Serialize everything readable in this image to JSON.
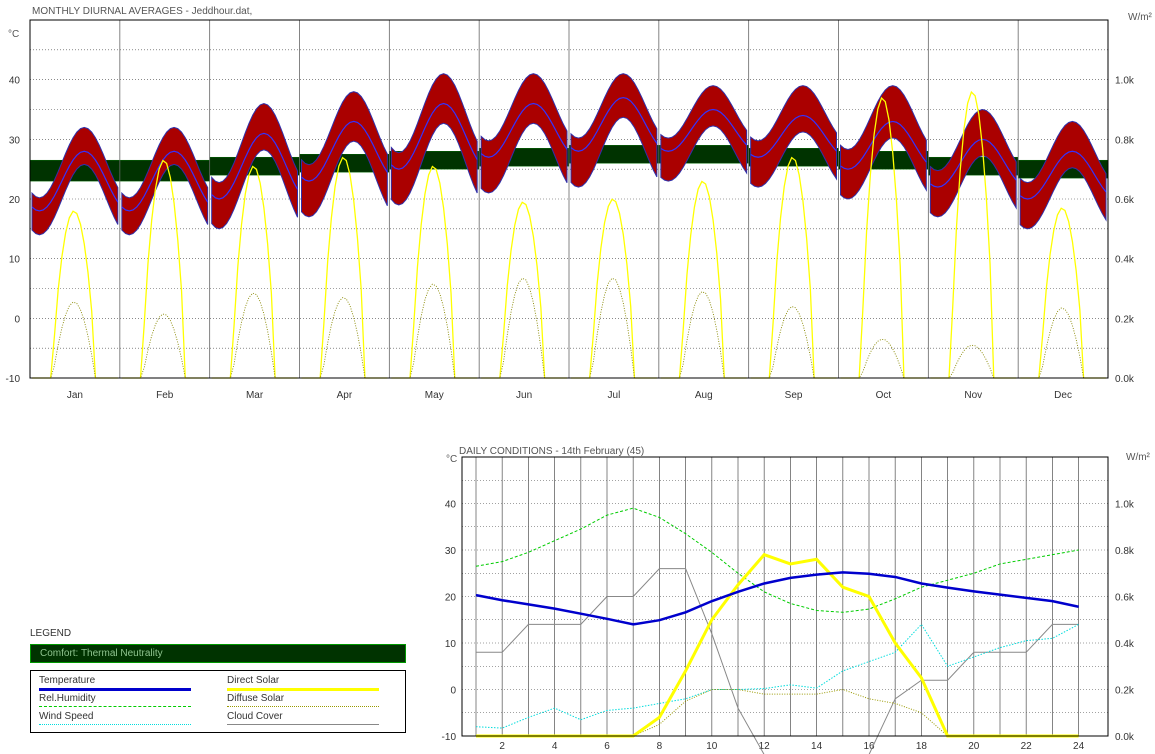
{
  "chart_data": [
    {
      "type": "line",
      "title": "MONTHLY DIURNAL AVERAGES - Jeddhour.dat,",
      "ylabel_left": "°C",
      "ylabel_right": "W/m²",
      "ylim": [
        -10,
        50
      ],
      "ylim_right": [
        0,
        1200
      ],
      "yticks_left": [
        "-10",
        "0",
        "10",
        "20",
        "30",
        "40"
      ],
      "yticks_right": [
        "0.0k",
        "0.2k",
        "0.4k",
        "0.6k",
        "0.8k",
        "1.0k"
      ],
      "categories": [
        "Jan",
        "Feb",
        "Mar",
        "Apr",
        "May",
        "Jun",
        "Jul",
        "Aug",
        "Sep",
        "Oct",
        "Nov",
        "Dec"
      ],
      "grid": true,
      "series": [
        {
          "name": "Temperature",
          "min": [
            18,
            18,
            20,
            23,
            25,
            27,
            28,
            28,
            27,
            25,
            22,
            20
          ],
          "max": [
            28,
            28,
            31,
            33,
            36,
            36,
            37,
            35,
            34,
            33,
            30,
            28
          ]
        },
        {
          "name": "Temperature max band",
          "values": [
            32,
            32,
            36,
            38,
            41,
            41,
            41,
            39,
            39,
            39,
            35,
            33
          ]
        },
        {
          "name": "Temperature min band",
          "values": [
            14,
            14,
            15,
            17,
            19,
            21,
            22,
            23,
            22,
            20,
            17,
            15
          ]
        },
        {
          "name": "Direct Solar",
          "peak_wm2": [
            560,
            730,
            710,
            740,
            710,
            590,
            600,
            660,
            740,
            940,
            960,
            570
          ]
        },
        {
          "name": "Diffuse Solar",
          "peak_wm2": [
            255,
            215,
            285,
            270,
            315,
            335,
            335,
            290,
            240,
            130,
            110,
            235
          ]
        }
      ],
      "comfort_band": {
        "name": "Comfort: Thermal Neutrality",
        "low": [
          23,
          23,
          24,
          24.5,
          25,
          25.5,
          26,
          26,
          25.5,
          25,
          24,
          23.5
        ],
        "high": [
          26.5,
          26.5,
          27,
          27.5,
          28,
          28.5,
          29,
          29,
          28.5,
          28,
          27,
          26.5
        ]
      }
    },
    {
      "type": "line",
      "title": "DAILY CONDITIONS - 14th February (45)",
      "ylabel_left": "°C",
      "ylabel_right": "W/m²",
      "ylim": [
        -10,
        50
      ],
      "ylim_right": [
        0,
        1200
      ],
      "yticks_left": [
        "-10",
        "0",
        "10",
        "20",
        "30",
        "40"
      ],
      "yticks_right": [
        "0.0k",
        "0.2k",
        "0.4k",
        "0.6k",
        "0.8k",
        "1.0k"
      ],
      "x": [
        1,
        2,
        3,
        4,
        5,
        6,
        7,
        8,
        9,
        10,
        11,
        12,
        13,
        14,
        15,
        16,
        17,
        18,
        19,
        20,
        21,
        22,
        23,
        24
      ],
      "xticks": [
        "2",
        "4",
        "6",
        "8",
        "10",
        "12",
        "14",
        "16",
        "18",
        "20",
        "22",
        "24"
      ],
      "grid": true,
      "series": [
        {
          "name": "Temperature",
          "values": [
            20.3,
            19.2,
            18.3,
            17.4,
            16.3,
            15.2,
            14.0,
            14.9,
            16.6,
            19.0,
            21.0,
            22.8,
            24.0,
            24.7,
            25.2,
            24.9,
            24.2,
            22.8,
            21.9,
            21.1,
            20.4,
            19.7,
            19.0,
            17.8
          ]
        },
        {
          "name": "Rel.Humidity",
          "values": [
            26.5,
            27.5,
            29.5,
            32,
            34.5,
            37.5,
            39,
            37,
            33.5,
            29.5,
            25,
            21,
            18.5,
            17,
            16.6,
            17.3,
            19.5,
            22,
            23.5,
            25,
            27,
            28,
            29,
            30
          ]
        },
        {
          "name": "Wind Speed",
          "values": [
            -8,
            -8.3,
            -6,
            -4,
            -6.5,
            -4.5,
            -4,
            -3,
            -2,
            0,
            0,
            0.2,
            1,
            0.3,
            4,
            6,
            8,
            14,
            5,
            7,
            9,
            10.5,
            11,
            14
          ]
        },
        {
          "name": "Direct Solar",
          "values_wm2": [
            0,
            0,
            0,
            0,
            0,
            0,
            0,
            80,
            280,
            500,
            650,
            780,
            740,
            760,
            640,
            600,
            400,
            250,
            0,
            0,
            0,
            0,
            0,
            0
          ]
        },
        {
          "name": "Diffuse Solar",
          "values_wm2": [
            0,
            0,
            0,
            0,
            0,
            0,
            0,
            50,
            150,
            200,
            200,
            180,
            180,
            180,
            200,
            160,
            140,
            100,
            0,
            0,
            0,
            0,
            0,
            0
          ]
        },
        {
          "name": "Cloud Cover",
          "values": [
            8,
            8,
            14,
            14,
            14,
            20,
            20,
            26,
            26,
            12,
            -4,
            -14,
            -14,
            -14,
            -14,
            -14,
            -2,
            2,
            2,
            8,
            8,
            8,
            14,
            14
          ]
        }
      ]
    }
  ],
  "legend": {
    "title": "LEGEND",
    "comfort": "Comfort: Thermal Neutrality",
    "items": [
      {
        "label": "Temperature",
        "color": "#0000cc",
        "style": "solid",
        "width": 3
      },
      {
        "label": "Direct Solar",
        "color": "#ffff00",
        "style": "solid",
        "width": 3
      },
      {
        "label": "Rel.Humidity",
        "color": "#00cc00",
        "style": "dashed",
        "width": 1
      },
      {
        "label": "Diffuse Solar",
        "color": "#999900",
        "style": "dotted",
        "width": 1
      },
      {
        "label": "Wind Speed",
        "color": "#00dddd",
        "style": "dotted",
        "width": 1
      },
      {
        "label": "Cloud Cover",
        "color": "#888888",
        "style": "solid",
        "width": 1
      }
    ]
  },
  "colors": {
    "temp": "#0000cc",
    "temp_band": "#cc0000",
    "comfort": "#003300",
    "direct_solar": "#ffff00",
    "diffuse_solar": "#999900",
    "humidity": "#00cc00",
    "wind": "#00dddd",
    "cloud": "#888888"
  }
}
